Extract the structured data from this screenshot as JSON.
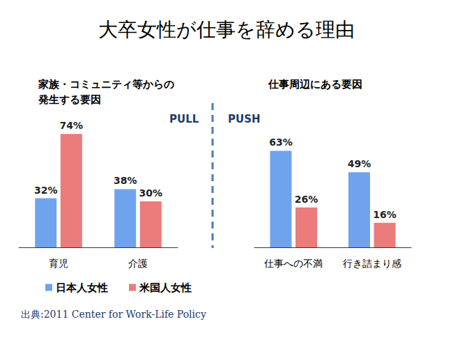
{
  "title": "大卒女性が仕事を辞める理由",
  "source": "出典:2011 Center for Work-Life Policy",
  "legend": "bottom-left",
  "chart_data": [
    {
      "type": "bar",
      "title": "家族・コミュニティ等からの\n発生する要因",
      "annotation": "PULL",
      "categories": [
        "育児",
        "介護"
      ],
      "series": [
        {
          "name": "日本人女性",
          "color": "#6fa3ee",
          "values": [
            32,
            38
          ],
          "value_labels": [
            "32%",
            "38%"
          ]
        },
        {
          "name": "米国人女性",
          "color": "#ec7b7b",
          "values": [
            74,
            30
          ],
          "value_labels": [
            "74%",
            "30%"
          ]
        }
      ],
      "ylim": [
        0,
        80
      ],
      "grid": false,
      "data_labels": true,
      "tick_labels": "x"
    },
    {
      "type": "bar",
      "title": "仕事周辺にある要因",
      "annotation": "PUSH",
      "categories": [
        "仕事への不満",
        "行き詰まり感"
      ],
      "series": [
        {
          "name": "日本人女性",
          "color": "#6fa3ee",
          "values": [
            63,
            49
          ],
          "value_labels": [
            "63%",
            "49%"
          ]
        },
        {
          "name": "米国人女性",
          "color": "#ec7b7b",
          "values": [
            26,
            16
          ],
          "value_labels": [
            "26%",
            "16%"
          ]
        }
      ],
      "ylim": [
        0,
        80
      ],
      "grid": false,
      "data_labels": true,
      "tick_labels": "x"
    }
  ]
}
